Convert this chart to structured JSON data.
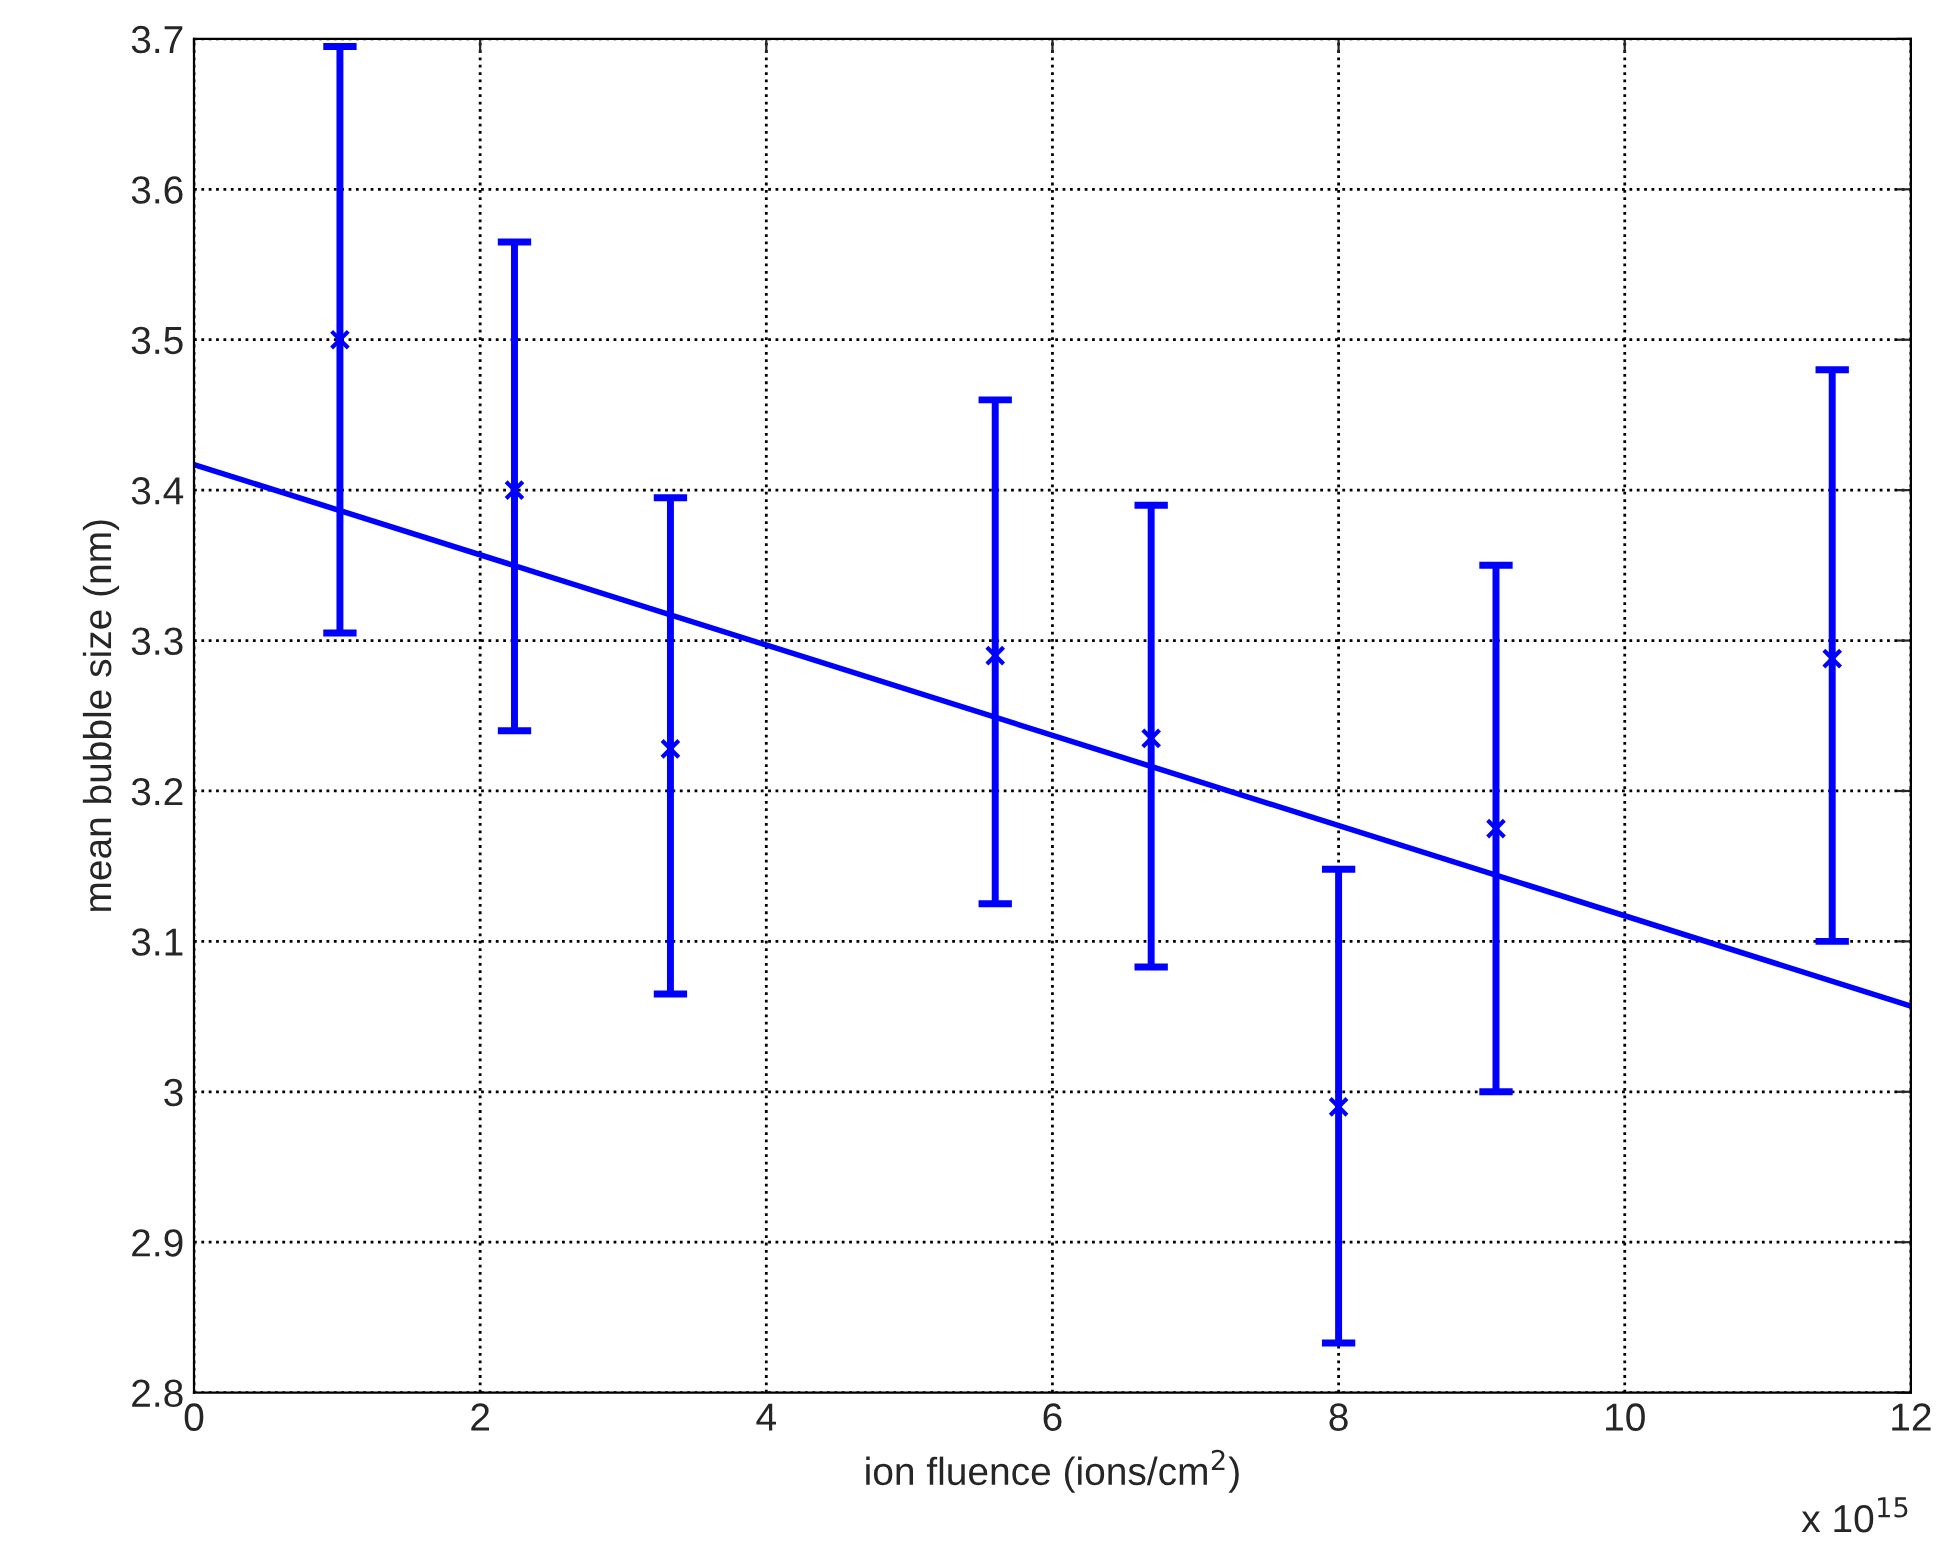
{
  "chart_data": {
    "type": "scatter",
    "xlabel": "ion fluence (ions/cm$^{2}$)",
    "ylabel": "mean bubble size (nm)",
    "annotations": [
      "x 10$^{15}$"
    ],
    "xlim": [
      0,
      12
    ],
    "ylim": [
      2.8,
      3.7
    ],
    "xticks": [
      0,
      2,
      4,
      6,
      8,
      10,
      12
    ],
    "yticks": [
      2.8,
      2.9,
      3,
      3.1,
      3.2,
      3.3,
      3.4,
      3.5,
      3.6,
      3.7
    ],
    "grid": true,
    "series": [
      {
        "color": "#0000ff",
        "marker": "cross",
        "x": [
          1.02,
          2.24,
          3.33,
          5.6,
          6.69,
          8.0,
          9.1,
          11.45
        ],
        "values": [
          3.5,
          3.4,
          3.228,
          3.29,
          3.235,
          2.99,
          3.175,
          3.288
        ],
        "errors": [
          [
            3.305,
            3.695
          ],
          [
            3.24,
            3.565
          ],
          [
            3.065,
            3.395
          ],
          [
            3.125,
            3.46
          ],
          [
            3.083,
            3.39
          ],
          [
            2.833,
            3.148
          ],
          [
            3.0,
            3.35
          ],
          [
            3.1,
            3.48
          ]
        ]
      },
      {
        "type": "line",
        "color": "#0000ff",
        "line_style": "solid",
        "x": [
          0,
          12
        ],
        "values": [
          3.417,
          3.057
        ]
      }
    ]
  }
}
